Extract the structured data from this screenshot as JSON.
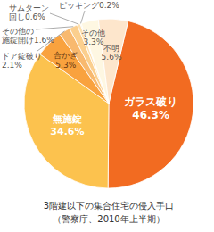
{
  "chart_data": {
    "type": "pie",
    "title": "3階建以下の集合住宅の侵入手口",
    "subtitle": "（警察庁、2010年上半期）",
    "categories": [
      "ガラス破り",
      "無施錠",
      "合かぎ",
      "ドア錠破り",
      "その他の\n施錠開け",
      "サムターン\n回し",
      "ピッキング",
      "その他",
      "不明"
    ],
    "values": [
      46.3,
      34.6,
      5.3,
      2.1,
      1.6,
      0.6,
      0.2,
      3.3,
      5.6
    ],
    "value_labels": [
      "46.3%",
      "34.6%",
      "5.3%",
      "2.1%",
      "1.6%",
      "0.6%",
      "0.2%",
      "3.3%",
      "5.6%"
    ],
    "colors": [
      "#f26b21",
      "#fcc24e",
      "#f9a23e",
      "#f8b96f",
      "#fbcf8e",
      "#fde0b0",
      "#fff0d4",
      "#fef7e2",
      "#fde6cc"
    ],
    "data_labels": true
  }
}
